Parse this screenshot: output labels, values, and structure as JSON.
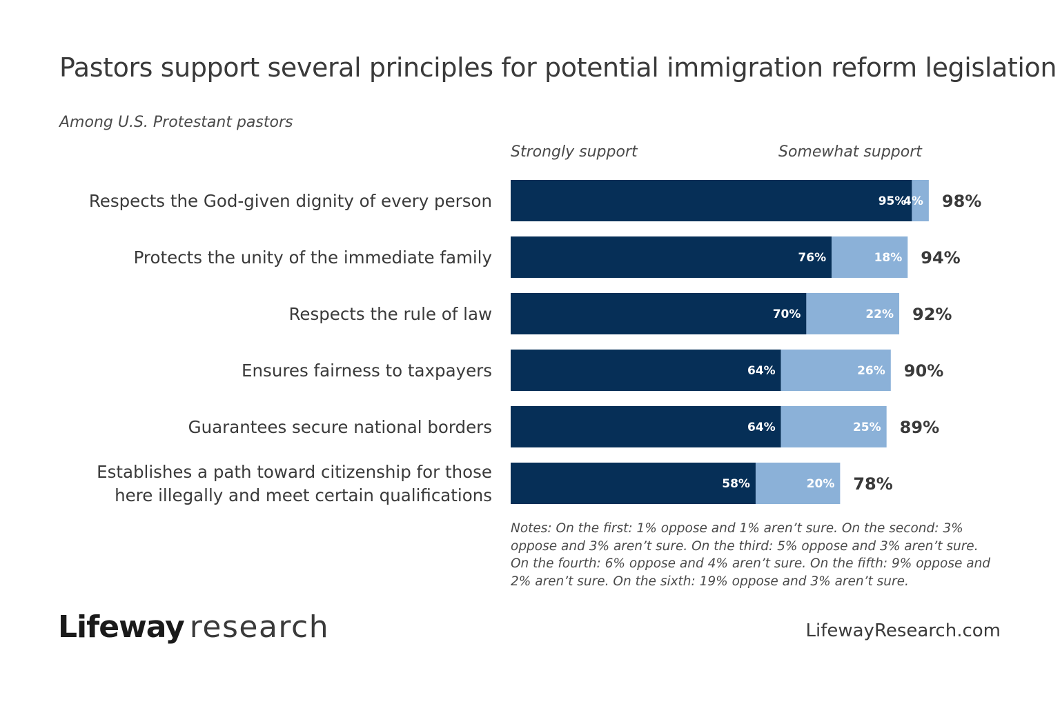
{
  "header": {
    "title": "Pastors support several principles for potential immigration reform legislation",
    "subtitle": "Among U.S. Protestant pastors"
  },
  "legend": {
    "strongly": "Strongly support",
    "somewhat": "Somewhat support"
  },
  "colors": {
    "strongly": "#062f57",
    "somewhat": "#8bb1d8"
  },
  "chart_data": {
    "type": "bar",
    "orientation": "horizontal",
    "stacked": true,
    "title": "Pastors support several principles for potential immigration reform legislation",
    "subtitle": "Among U.S. Protestant pastors",
    "categories": [
      [
        "Respects the God-given dignity of every person"
      ],
      [
        "Protects the unity of the immediate family"
      ],
      [
        "Respects the rule of law"
      ],
      [
        "Ensures fairness to taxpayers"
      ],
      [
        "Guarantees secure national borders"
      ],
      [
        "Establishes a path toward citizenship for those",
        "here illegally and meet certain qualifications"
      ]
    ],
    "series": [
      {
        "name": "Strongly support",
        "values": [
          95,
          76,
          70,
          64,
          64,
          58
        ],
        "labels": [
          "95%",
          "76%",
          "70%",
          "64%",
          "64%",
          "58%"
        ]
      },
      {
        "name": "Somewhat support",
        "values": [
          4,
          18,
          22,
          26,
          25,
          20
        ],
        "labels": [
          "4%",
          "18%",
          "22%",
          "26%",
          "25%",
          "20%"
        ]
      }
    ],
    "totals": [
      "98%",
      "94%",
      "92%",
      "90%",
      "89%",
      "78%"
    ],
    "xlim": [
      0,
      100
    ],
    "grid": false,
    "legend_position": "top"
  },
  "notes": "Notes: On the first: 1% oppose and 1% aren’t sure. On the second: 3% oppose and 3% aren’t sure. On the third: 5% oppose and 3% aren’t sure. On the fourth: 6% oppose and 4% aren’t sure. On the fifth: 9% oppose and 2% aren’t sure. On the sixth: 19% oppose and 3% aren’t sure.",
  "footer": {
    "logo_bold": "Lifeway",
    "logo_light": "research",
    "url": "LifewayResearch.com"
  }
}
